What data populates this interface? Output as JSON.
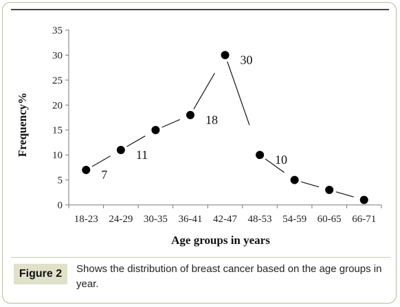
{
  "chart_data": {
    "type": "scatter",
    "categories": [
      "18-23",
      "24-29",
      "30-35",
      "36-41",
      "42-47",
      "48-53",
      "54-59",
      "60-65",
      "66-71"
    ],
    "values": [
      7,
      11,
      15,
      18,
      30,
      10,
      5,
      3,
      1
    ],
    "data_labels": [
      {
        "index": 0,
        "text": "7"
      },
      {
        "index": 1,
        "text": "11"
      },
      {
        "index": 3,
        "text": "18"
      },
      {
        "index": 4,
        "text": "30"
      },
      {
        "index": 5,
        "text": "10"
      }
    ],
    "xlabel": "Age groups in years",
    "ylabel": "Frequency%",
    "ylim": [
      0,
      35
    ],
    "yticks": [
      0,
      5,
      10,
      15,
      20,
      25,
      30,
      35
    ],
    "grid": false,
    "marker_color": "#000000"
  },
  "caption": {
    "label": "Figure 2",
    "text": "Shows the distribution of breast cancer based on the age groups in year."
  }
}
